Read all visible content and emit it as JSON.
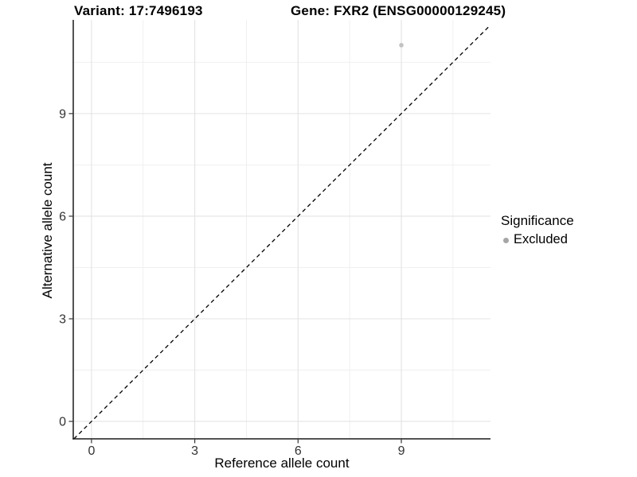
{
  "title": {
    "variant": "Variant: 17:7496193",
    "gene": "Gene: FXR2 (ENSG00000129245)"
  },
  "chart_data": {
    "type": "scatter",
    "title": "Variant: 17:7496193    Gene: FXR2 (ENSG00000129245)",
    "xlabel": "Reference allele count",
    "ylabel": "Alternative allele count",
    "xlim": [
      -0.53,
      11.59
    ],
    "ylim": [
      -0.51,
      11.74
    ],
    "x_ticks": {
      "values": [
        0,
        3,
        6,
        9
      ],
      "labels": [
        "0",
        "3",
        "6",
        "9"
      ]
    },
    "y_ticks": {
      "values": [
        0,
        3,
        6,
        9
      ],
      "labels": [
        "0",
        "3",
        "6",
        "9"
      ]
    },
    "x_minor_ticks": [
      1.5,
      4.5,
      7.5,
      10.5
    ],
    "y_minor_ticks": [
      1.5,
      4.5,
      7.5,
      10.5
    ],
    "grid": true,
    "grid_color_major": "#e3e3e3",
    "grid_color_minor": "#eeeeee",
    "axis_color": "#1a1a1a",
    "tick_label_color": "#333333",
    "reference_line": {
      "kind": "identity",
      "style": "dashed",
      "dash": [
        5,
        4
      ],
      "color": "#000000",
      "width": 1.3
    },
    "series": [
      {
        "name": "Excluded",
        "color": "#c2c2c2",
        "marker": "circle",
        "size": 2.8,
        "points": [
          [
            9,
            11
          ]
        ]
      }
    ],
    "legend": {
      "title": "Significance",
      "position": "right",
      "items": [
        {
          "label": "Excluded",
          "color": "#a6a6a6",
          "marker": "circle"
        }
      ]
    }
  }
}
